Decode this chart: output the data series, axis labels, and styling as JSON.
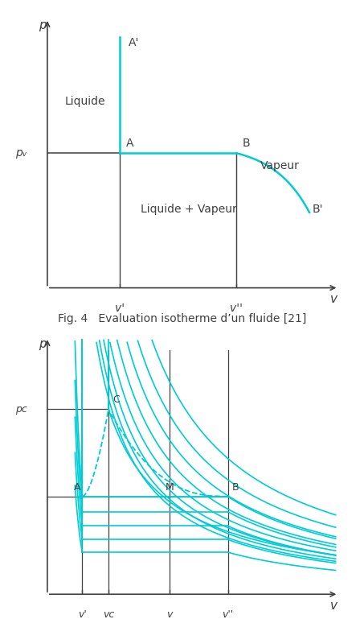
{
  "fig_caption": "Fig. 4   Evaluation isotherme d’un fluide [21]",
  "cyan_color": "#00CCD4",
  "dark_color": "#404040",
  "bg_color": "#FFFFFF",
  "top_plot": {
    "xlim": [
      0,
      10
    ],
    "ylim": [
      0,
      10
    ],
    "pv_y": 5.0,
    "vprime_x": 2.5,
    "vdprime_x": 6.5,
    "A_label": "A",
    "B_label": "B",
    "Aprime_label": "A'",
    "Bprime_label": "B'",
    "Liquide_label": "Liquide",
    "Vapeur_label": "Vapeur",
    "LiqVap_label": "Liquide + Vapeur",
    "pv_label": "pᵥ",
    "vprime_label": "v'",
    "vdprime_label": "v''",
    "v_axis_label": "v",
    "p_axis_label": "p"
  },
  "bottom_plot": {
    "xlim": [
      0,
      10
    ],
    "ylim": [
      0,
      10
    ],
    "vprime_x": 1.2,
    "vC_x": 2.1,
    "v_x": 4.2,
    "vdprime_x": 6.2,
    "pC_y": 7.2,
    "pA_y": 3.8,
    "A_label": "A",
    "B_label": "B",
    "C_label": "C",
    "M_label": "M",
    "pC_label": "pᴄ",
    "vprime_label": "v'",
    "vC_label": "vᴄ",
    "v_label": "v",
    "vdprime_label": "v''",
    "v_axis_label": "v",
    "p_axis_label": "p"
  }
}
